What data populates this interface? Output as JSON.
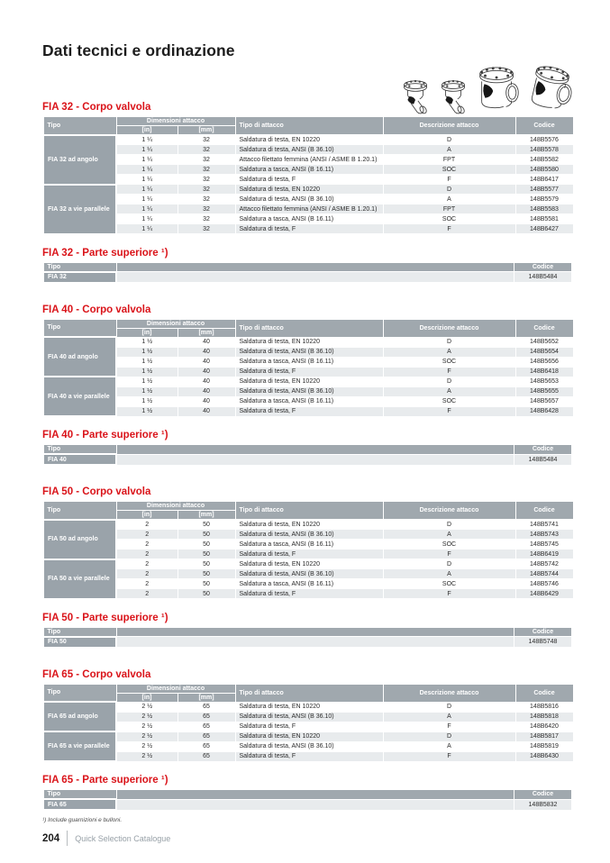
{
  "page": {
    "title": "Dati tecnici e ordinazione"
  },
  "colors": {
    "accent_red": "#da141a",
    "header_gray": "#a0a8ae",
    "group_gray": "#9aa3aa",
    "row_alt": "#e8ebed"
  },
  "illustrations": [
    "angle-valve-drawing",
    "angle-valve-drawing",
    "globe-valve-drawing",
    "globe-valve-tilted-drawing"
  ],
  "table_headers": {
    "tipo": "Tipo",
    "dimensioni": "Dimensioni attacco",
    "inch": "[in]",
    "mm": "[mm]",
    "tipo_attacco": "Tipo di attacco",
    "descrizione": "Descrizione attacco",
    "codice": "Codice"
  },
  "sections": [
    {
      "heading": "FIA 32 - Corpo valvola",
      "groups": [
        {
          "label": "FIA 32 ad angolo",
          "rows": [
            [
              "1 ¼",
              "32",
              "Saldatura di testa, EN 10220",
              "D",
              "148B5576"
            ],
            [
              "1 ¼",
              "32",
              "Saldatura di testa, ANSI (B 36.10)",
              "A",
              "148B5578"
            ],
            [
              "1 ¼",
              "32",
              "Attacco filettato femmina (ANSI / ASME B 1.20.1)",
              "FPT",
              "148B5582"
            ],
            [
              "1 ¼",
              "32",
              "Saldatura a tasca, ANSI (B 16.11)",
              "SOC",
              "148B5580"
            ],
            [
              "1 ¼",
              "32",
              "Saldatura di testa, F",
              "F",
              "148B6417"
            ]
          ]
        },
        {
          "label": "FIA 32 a vie parallele",
          "rows": [
            [
              "1 ¼",
              "32",
              "Saldatura di testa, EN 10220",
              "D",
              "148B5577"
            ],
            [
              "1 ¼",
              "32",
              "Saldatura di testa, ANSI (B 36.10)",
              "A",
              "148B5579"
            ],
            [
              "1 ¼",
              "32",
              "Attacco filettato femmina (ANSI / ASME B 1.20.1)",
              "FPT",
              "148B5583"
            ],
            [
              "1 ¼",
              "32",
              "Saldatura a tasca, ANSI (B 16.11)",
              "SOC",
              "148B5581"
            ],
            [
              "1 ¼",
              "32",
              "Saldatura di testa, F",
              "F",
              "148B6427"
            ]
          ]
        }
      ],
      "parte_superiore": {
        "heading": "FIA 32 - Parte superiore ¹)",
        "tipo": "FIA 32",
        "codice": "148B5484"
      }
    },
    {
      "heading": "FIA 40 - Corpo valvola",
      "groups": [
        {
          "label": "FIA 40 ad angolo",
          "rows": [
            [
              "1 ½",
              "40",
              "Saldatura di testa, EN 10220",
              "D",
              "148B5652"
            ],
            [
              "1 ½",
              "40",
              "Saldatura di testa, ANSI (B 36.10)",
              "A",
              "148B5654"
            ],
            [
              "1 ½",
              "40",
              "Saldatura a tasca, ANSI (B 16.11)",
              "SOC",
              "148B5656"
            ],
            [
              "1 ½",
              "40",
              "Saldatura di testa, F",
              "F",
              "148B6418"
            ]
          ]
        },
        {
          "label": "FIA 40 a vie parallele",
          "rows": [
            [
              "1 ½",
              "40",
              "Saldatura di testa, EN 10220",
              "D",
              "148B5653"
            ],
            [
              "1 ½",
              "40",
              "Saldatura di testa, ANSI (B 36.10)",
              "A",
              "148B5655"
            ],
            [
              "1 ½",
              "40",
              "Saldatura a tasca, ANSI (B 16.11)",
              "SOC",
              "148B5657"
            ],
            [
              "1 ½",
              "40",
              "Saldatura di testa, F",
              "F",
              "148B6428"
            ]
          ]
        }
      ],
      "parte_superiore": {
        "heading": "FIA 40 - Parte superiore ¹)",
        "tipo": "FIA 40",
        "codice": "148B5484"
      }
    },
    {
      "heading": "FIA 50 - Corpo valvola",
      "groups": [
        {
          "label": "FIA 50 ad angolo",
          "rows": [
            [
              "2",
              "50",
              "Saldatura di testa, EN 10220",
              "D",
              "148B5741"
            ],
            [
              "2",
              "50",
              "Saldatura di testa, ANSI (B 36.10)",
              "A",
              "148B5743"
            ],
            [
              "2",
              "50",
              "Saldatura a tasca, ANSI (B 16.11)",
              "SOC",
              "148B5745"
            ],
            [
              "2",
              "50",
              "Saldatura di testa, F",
              "F",
              "148B6419"
            ]
          ]
        },
        {
          "label": "FIA 50 a vie parallele",
          "rows": [
            [
              "2",
              "50",
              "Saldatura di testa, EN 10220",
              "D",
              "148B5742"
            ],
            [
              "2",
              "50",
              "Saldatura di testa, ANSI (B 36.10)",
              "A",
              "148B5744"
            ],
            [
              "2",
              "50",
              "Saldatura a tasca, ANSI (B 16.11)",
              "SOC",
              "148B5746"
            ],
            [
              "2",
              "50",
              "Saldatura di testa, F",
              "F",
              "148B6429"
            ]
          ]
        }
      ],
      "parte_superiore": {
        "heading": "FIA 50 - Parte superiore ¹)",
        "tipo": "FIA 50",
        "codice": "148B5748"
      }
    },
    {
      "heading": "FIA 65 - Corpo valvola",
      "groups": [
        {
          "label": "FIA 65 ad angolo",
          "rows": [
            [
              "2 ½",
              "65",
              "Saldatura di testa, EN 10220",
              "D",
              "148B5816"
            ],
            [
              "2 ½",
              "65",
              "Saldatura di testa, ANSI (B 36.10)",
              "A",
              "148B5818"
            ],
            [
              "2 ½",
              "65",
              "Saldatura di testa, F",
              "F",
              "148B6420"
            ]
          ]
        },
        {
          "label": "FIA 65 a vie parallele",
          "rows": [
            [
              "2 ½",
              "65",
              "Saldatura di testa, EN 10220",
              "D",
              "148B5817"
            ],
            [
              "2 ½",
              "65",
              "Saldatura di testa, ANSI (B 36.10)",
              "A",
              "148B5819"
            ],
            [
              "2 ½",
              "65",
              "Saldatura di testa, F",
              "F",
              "148B6430"
            ]
          ]
        }
      ],
      "parte_superiore": {
        "heading": "FIA 65 - Parte superiore ¹)",
        "tipo": "FIA 65",
        "codice": "148B5832"
      }
    }
  ],
  "footnote": "¹) Include guarnizioni e bulloni.",
  "footer": {
    "page_number": "204",
    "catalogue_name": "Quick Selection Catalogue"
  }
}
